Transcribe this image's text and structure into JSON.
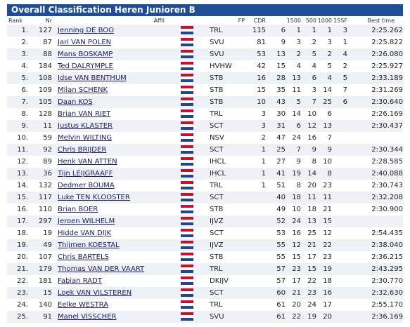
{
  "title": "Overall Classification Heren Junioren B",
  "columns": {
    "rank": "Rank",
    "nr": "Nr",
    "affil": "Affil",
    "fp": "FP",
    "cdr": "CDR",
    "d1500": "1500",
    "d500": "500",
    "d1000": "1000",
    "d1500f": "1SSF",
    "best": "Best time"
  },
  "flag_colors": {
    "red": "#c8102e",
    "white": "#ffffff",
    "blue": "#21468b"
  },
  "rows": [
    {
      "rank": "1.",
      "nr": "127",
      "name": "Jenning DE BOO",
      "club": "TRL",
      "fp": "115",
      "cdr": "6",
      "d1500": "1",
      "d500": "1",
      "d1000": "1",
      "d1500f": "3",
      "best": "2:25.262"
    },
    {
      "rank": "2.",
      "nr": "87",
      "name": "Jari VAN POLEN",
      "club": "SVU",
      "fp": "81",
      "cdr": "9",
      "d1500": "3",
      "d500": "2",
      "d1000": "3",
      "d1500f": "1",
      "best": "2:25.822"
    },
    {
      "rank": "3.",
      "nr": "88",
      "name": "Mans BOSKAMP",
      "club": "SVU",
      "fp": "53",
      "cdr": "13",
      "d1500": "2",
      "d500": "5",
      "d1000": "2",
      "d1500f": "4",
      "best": "2:26.080"
    },
    {
      "rank": "4.",
      "nr": "184",
      "name": "Ted DALRYMPLE",
      "club": "HVHW",
      "fp": "42",
      "cdr": "15",
      "d1500": "4",
      "d500": "4",
      "d1000": "5",
      "d1500f": "2",
      "best": "2:25.927"
    },
    {
      "rank": "5.",
      "nr": "108",
      "name": "Idse VAN BENTHUM",
      "club": "STB",
      "fp": "16",
      "cdr": "28",
      "d1500": "13",
      "d500": "6",
      "d1000": "4",
      "d1500f": "5",
      "best": "2:33.189"
    },
    {
      "rank": "6.",
      "nr": "109",
      "name": "Milan SCHENK",
      "club": "STB",
      "fp": "15",
      "cdr": "35",
      "d1500": "11",
      "d500": "3",
      "d1000": "14",
      "d1500f": "7",
      "best": "2:31.269"
    },
    {
      "rank": "7.",
      "nr": "105",
      "name": "Daan KOS",
      "club": "STB",
      "fp": "10",
      "cdr": "43",
      "d1500": "5",
      "d500": "7",
      "d1000": "25",
      "d1500f": "6",
      "best": "2:30.640"
    },
    {
      "rank": "8.",
      "nr": "128",
      "name": "Brian VAN RIET",
      "club": "TRL",
      "fp": "3",
      "cdr": "30",
      "d1500": "14",
      "d500": "10",
      "d1000": "6",
      "d1500f": "",
      "best": "2:26.169"
    },
    {
      "rank": "9.",
      "nr": "11",
      "name": "Justus KLASTER",
      "club": "SCT",
      "fp": "3",
      "cdr": "31",
      "d1500": "6",
      "d500": "12",
      "d1000": "13",
      "d1500f": "",
      "best": "2:30.437"
    },
    {
      "rank": "10.",
      "nr": "59",
      "name": "Melvin WILTING",
      "club": "NSV",
      "fp": "2",
      "cdr": "47",
      "d1500": "24",
      "d500": "16",
      "d1000": "7",
      "d1500f": "",
      "best": ""
    },
    {
      "rank": "11.",
      "nr": "92",
      "name": "Chris BRIJDER",
      "club": "SCT",
      "fp": "1",
      "cdr": "25",
      "d1500": "7",
      "d500": "9",
      "d1000": "9",
      "d1500f": "",
      "best": "2:30.344"
    },
    {
      "rank": "12.",
      "nr": "89",
      "name": "Henk VAN ATTEN",
      "club": "IHCL",
      "fp": "1",
      "cdr": "27",
      "d1500": "9",
      "d500": "8",
      "d1000": "10",
      "d1500f": "",
      "best": "2:28.585"
    },
    {
      "rank": "13.",
      "nr": "36",
      "name": "Tijn LEIJGRAAFF",
      "club": "IHCL",
      "fp": "1",
      "cdr": "41",
      "d1500": "19",
      "d500": "14",
      "d1000": "8",
      "d1500f": "",
      "best": "2:40.088"
    },
    {
      "rank": "14.",
      "nr": "132",
      "name": "Dedmer BOUMA",
      "club": "TRL",
      "fp": "1",
      "cdr": "51",
      "d1500": "8",
      "d500": "20",
      "d1000": "23",
      "d1500f": "",
      "best": "2:30.743"
    },
    {
      "rank": "15.",
      "nr": "117",
      "name": "Luke TEN KLOOSTER",
      "club": "SCT",
      "fp": "",
      "cdr": "40",
      "d1500": "18",
      "d500": "11",
      "d1000": "11",
      "d1500f": "",
      "best": "2:32.208"
    },
    {
      "rank": "16.",
      "nr": "110",
      "name": "Brian BOER",
      "club": "STB",
      "fp": "",
      "cdr": "49",
      "d1500": "10",
      "d500": "18",
      "d1000": "21",
      "d1500f": "",
      "best": "2:30.900"
    },
    {
      "rank": "17.",
      "nr": "297",
      "name": "Jeroen WILHELM",
      "club": "IJVZ",
      "fp": "",
      "cdr": "52",
      "d1500": "24",
      "d500": "13",
      "d1000": "15",
      "d1500f": "",
      "best": ""
    },
    {
      "rank": "18.",
      "nr": "19",
      "name": "Hidde VAN DIJK",
      "club": "SCT",
      "fp": "",
      "cdr": "53",
      "d1500": "16",
      "d500": "25",
      "d1000": "12",
      "d1500f": "",
      "best": "2:54.435"
    },
    {
      "rank": "19.",
      "nr": "49",
      "name": "Thijmen KOESTAL",
      "club": "IJVZ",
      "fp": "",
      "cdr": "55",
      "d1500": "12",
      "d500": "21",
      "d1000": "22",
      "d1500f": "",
      "best": "2:38.040"
    },
    {
      "rank": "20.",
      "nr": "107",
      "name": "Chris BARTELS",
      "club": "STB",
      "fp": "",
      "cdr": "55",
      "d1500": "15",
      "d500": "17",
      "d1000": "23",
      "d1500f": "",
      "best": "2:36.215"
    },
    {
      "rank": "21.",
      "nr": "179",
      "name": "Thomas VAN DER VAART",
      "club": "TRL",
      "fp": "",
      "cdr": "57",
      "d1500": "23",
      "d500": "15",
      "d1000": "19",
      "d1500f": "",
      "best": "2:43.295"
    },
    {
      "rank": "22.",
      "nr": "181",
      "name": "Fabian RADT",
      "club": "DKIJV",
      "fp": "",
      "cdr": "57",
      "d1500": "17",
      "d500": "22",
      "d1000": "18",
      "d1500f": "",
      "best": "2:30.770"
    },
    {
      "rank": "23.",
      "nr": "15",
      "name": "Loek VAN VILSTEREN",
      "club": "SCT",
      "fp": "",
      "cdr": "60",
      "d1500": "21",
      "d500": "23",
      "d1000": "16",
      "d1500f": "",
      "best": "2:32.630"
    },
    {
      "rank": "24.",
      "nr": "140",
      "name": "Eelke WESTRA",
      "club": "TRL",
      "fp": "",
      "cdr": "61",
      "d1500": "20",
      "d500": "24",
      "d1000": "17",
      "d1500f": "",
      "best": "2:55.170"
    },
    {
      "rank": "25.",
      "nr": "91",
      "name": "Manel VISSCHER",
      "club": "SVU",
      "fp": "",
      "cdr": "61",
      "d1500": "22",
      "d500": "19",
      "d1000": "20",
      "d1500f": "",
      "best": "2:36.169"
    }
  ]
}
